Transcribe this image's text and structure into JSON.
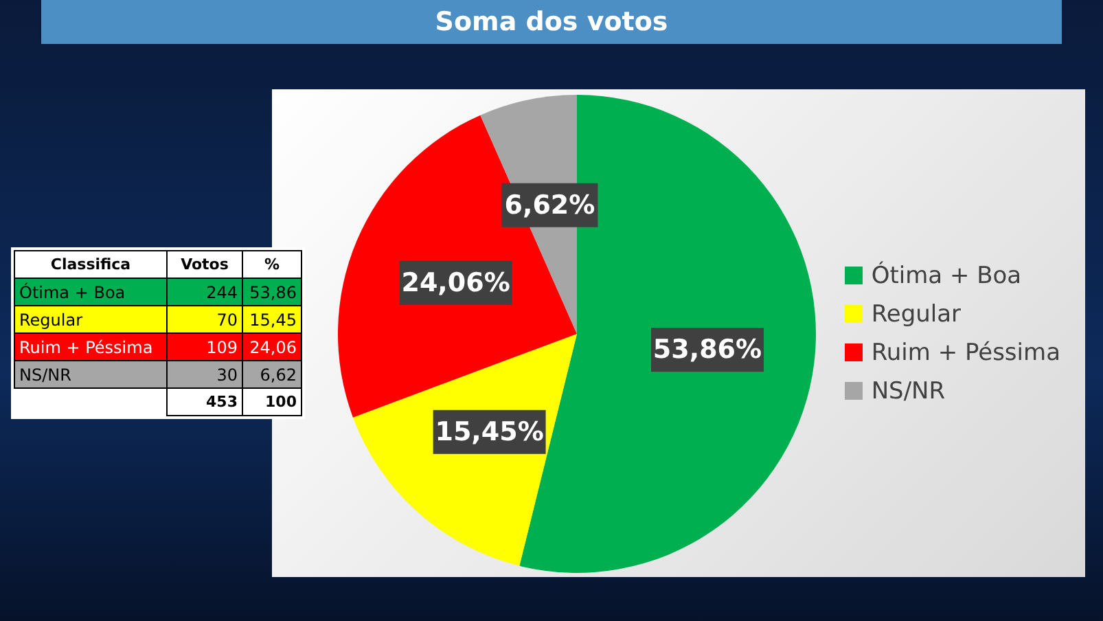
{
  "chart_data": [
    {
      "type": "pie",
      "title": "Soma dos votos",
      "categories": [
        "Ótima + Boa",
        "Regular",
        "Ruim + Péssima",
        "NS/NR"
      ],
      "values": [
        53.86,
        15.45,
        24.06,
        6.62
      ],
      "colors": [
        "#00b050",
        "#ffff00",
        "#ff0000",
        "#a6a6a6"
      ],
      "value_labels": [
        "53,86%",
        "15,45%",
        "24,06%",
        "6,62%"
      ],
      "legend": "right"
    },
    {
      "type": "other",
      "annotations": [
        "Classifica",
        "%",
        "53,86",
        "15,45",
        "24,06",
        "6,62",
        "453",
        "100"
      ],
      "categories": [
        "Ótima + Boa",
        "Regular",
        "Ruim + Péssima",
        "NS/NR"
      ],
      "colors": [
        "#00b050",
        "#ffff00",
        "#ff0000",
        "#a6a6a6"
      ],
      "data_labels": true,
      "series": [
        {
          "name": "Votos",
          "values": [
            244,
            70,
            109,
            30
          ],
          "colors": [
            "#00b050",
            "#ffff00",
            "#ff0000",
            "#a6a6a6"
          ]
        }
      ]
    }
  ]
}
